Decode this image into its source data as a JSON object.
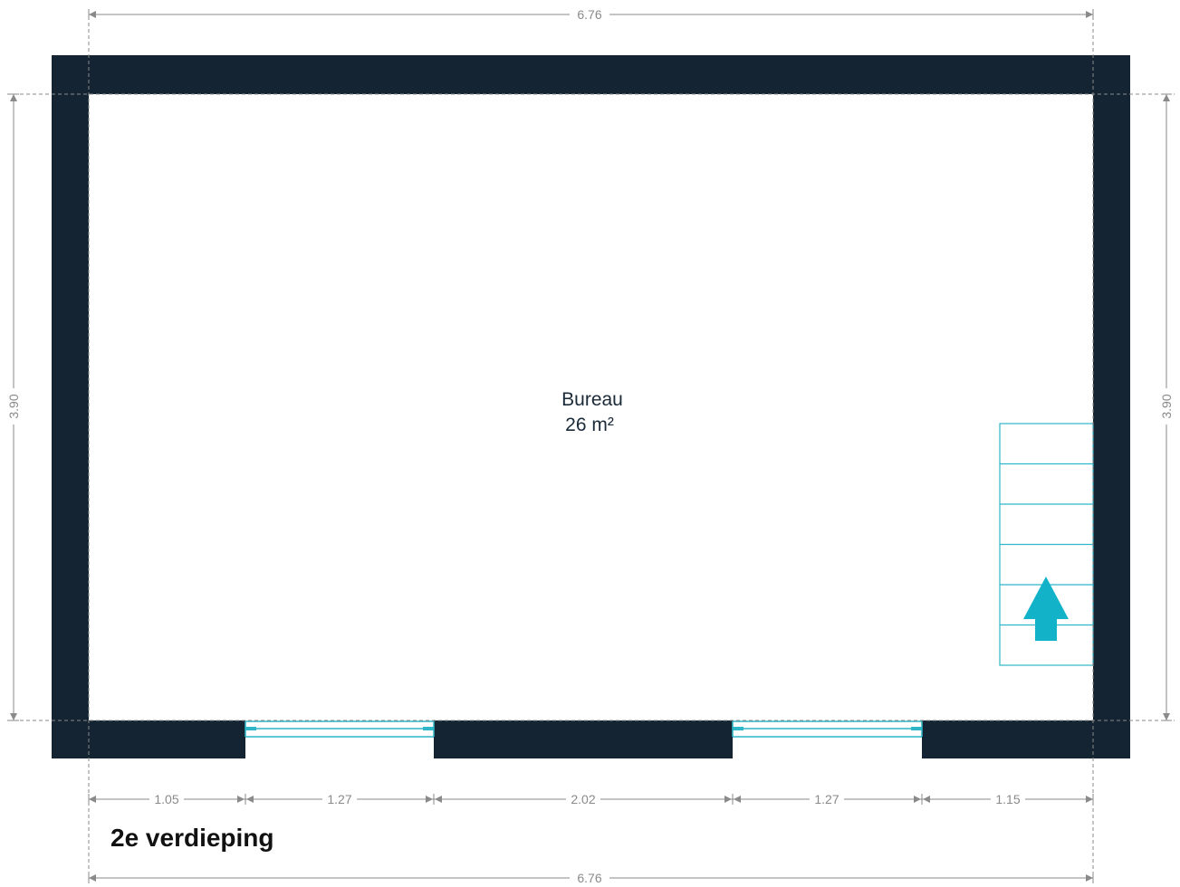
{
  "colors": {
    "wall": "#142433",
    "dimension": "#8a8a8a",
    "fixture": "#2fb6c8",
    "arrow": "#12b3c9"
  },
  "floor_label": "2e verdieping",
  "room": {
    "name": "Bureau",
    "area": "26 m²"
  },
  "dimensions": {
    "top_total": "6.76",
    "bottom_total": "6.76",
    "left_height": "3.90",
    "right_height": "3.90",
    "bottom_segments": [
      "1.05",
      "1.27",
      "2.02",
      "1.27",
      "1.15"
    ]
  },
  "fixtures": {
    "windows": 2,
    "stair_steps": 6,
    "stair_direction": "up"
  }
}
